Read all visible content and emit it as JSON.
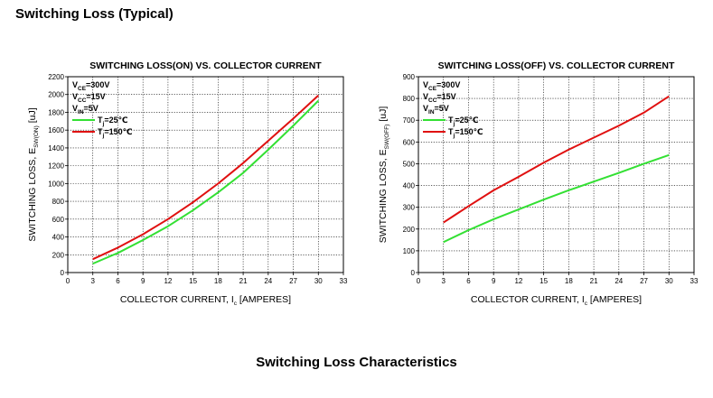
{
  "page": {
    "title": "Switching Loss (Typical)",
    "caption": "Switching Loss Characteristics"
  },
  "chart_data": [
    {
      "type": "line",
      "title": "SWITCHING LOSS(ON) VS. COLLECTOR CURRENT",
      "xlabel": "COLLECTOR CURRENT, I",
      "xlabel_sub": "c",
      "xlabel_tail": " [AMPERES]",
      "ylabel": "SWITCHING LOSS, E",
      "ylabel_sub": "SW(ON)",
      "ylabel_tail": " [uJ]",
      "xlim": [
        0,
        33
      ],
      "ylim": [
        0,
        2200
      ],
      "xticks": [
        0,
        3,
        6,
        9,
        12,
        15,
        18,
        21,
        24,
        27,
        30,
        33
      ],
      "yticks": [
        0,
        200,
        400,
        600,
        800,
        1000,
        1200,
        1400,
        1600,
        1800,
        2000,
        2200
      ],
      "grid": true,
      "conditions": [
        {
          "main": "V",
          "sub": "CE",
          "rest": "=300V"
        },
        {
          "main": "V",
          "sub": "CC",
          "rest": "=15V"
        },
        {
          "main": "V",
          "sub": "IN",
          "rest": "=5V"
        }
      ],
      "series": [
        {
          "name": "T",
          "name_sub": "j",
          "name_rest": "=25℃",
          "color": "#33e033",
          "x": [
            3,
            6,
            9,
            12,
            15,
            18,
            21,
            24,
            27,
            30
          ],
          "y": [
            100,
            220,
            365,
            520,
            700,
            900,
            1120,
            1380,
            1650,
            1930
          ]
        },
        {
          "name": "T",
          "name_sub": "j",
          "name_rest": "=150℃",
          "color": "#e01010",
          "x": [
            3,
            6,
            9,
            12,
            15,
            18,
            21,
            24,
            27,
            30
          ],
          "y": [
            150,
            280,
            430,
            600,
            790,
            1000,
            1230,
            1480,
            1730,
            1990
          ]
        }
      ]
    },
    {
      "type": "line",
      "title": "SWITCHING LOSS(OFF) VS. COLLECTOR CURRENT",
      "xlabel": "COLLECTOR CURRENT, I",
      "xlabel_sub": "c",
      "xlabel_tail": " [AMPERES]",
      "ylabel": "SWITCHING LOSS, E",
      "ylabel_sub": "SW(OFF)",
      "ylabel_tail": " [uJ]",
      "xlim": [
        0,
        33
      ],
      "ylim": [
        0,
        900
      ],
      "xticks": [
        0,
        3,
        6,
        9,
        12,
        15,
        18,
        21,
        24,
        27,
        30,
        33
      ],
      "yticks": [
        0,
        100,
        200,
        300,
        400,
        500,
        600,
        700,
        800,
        900
      ],
      "grid": true,
      "conditions": [
        {
          "main": "V",
          "sub": "CE",
          "rest": "=300V"
        },
        {
          "main": "V",
          "sub": "CC",
          "rest": "=15V"
        },
        {
          "main": "V",
          "sub": "IN",
          "rest": "=5V"
        }
      ],
      "series": [
        {
          "name": "T",
          "name_sub": "j",
          "name_rest": "=25℃",
          "color": "#33e033",
          "x": [
            3,
            6,
            9,
            12,
            15,
            18,
            21,
            24,
            27,
            30
          ],
          "y": [
            140,
            195,
            245,
            290,
            335,
            378,
            418,
            458,
            500,
            540
          ]
        },
        {
          "name": "T",
          "name_sub": "j",
          "name_rest": "=150℃",
          "color": "#e01010",
          "x": [
            3,
            6,
            9,
            12,
            15,
            18,
            21,
            24,
            27,
            30
          ],
          "y": [
            230,
            305,
            378,
            440,
            505,
            565,
            620,
            675,
            735,
            810
          ]
        }
      ]
    }
  ]
}
